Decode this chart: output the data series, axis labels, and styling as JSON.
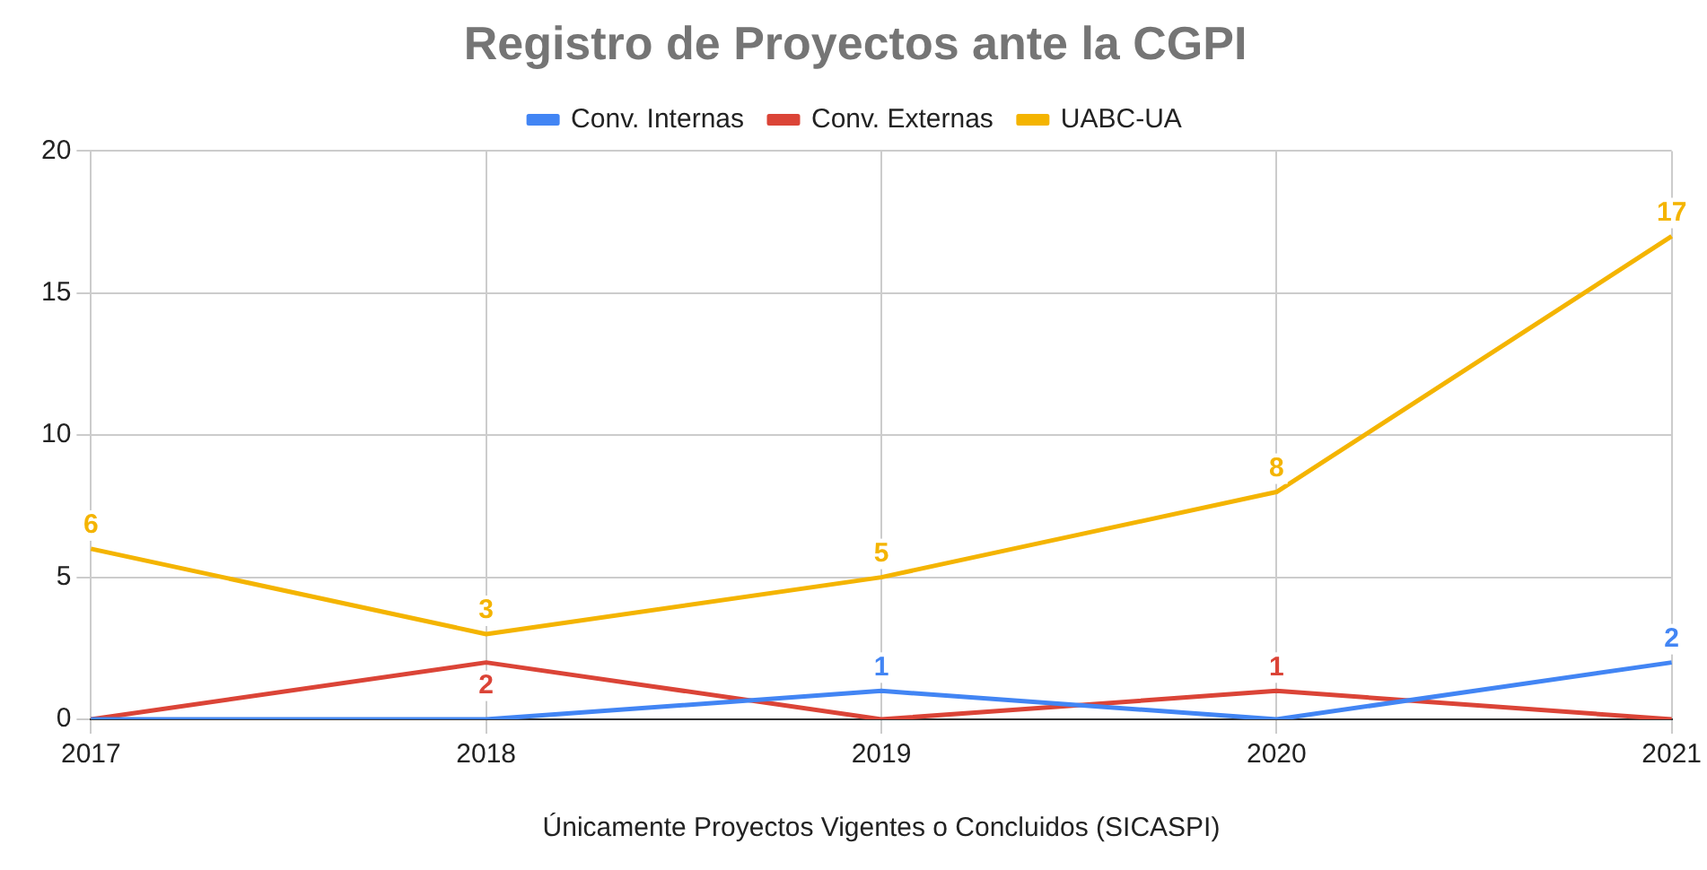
{
  "chart_data": {
    "type": "line",
    "title": "Registro de Proyectos ante la CGPI",
    "xlabel": "Únicamente Proyectos Vigentes o Concluidos (SICASPI)",
    "categories": [
      "2017",
      "2018",
      "2019",
      "2020",
      "2021"
    ],
    "series": [
      {
        "name": "Conv. Internas",
        "color": "#4285f4",
        "values": [
          0,
          0,
          1,
          0,
          2
        ],
        "value_labels": [
          null,
          null,
          "1",
          null,
          "2"
        ]
      },
      {
        "name": "Conv. Externas",
        "color": "#db4437",
        "values": [
          0,
          2,
          0,
          1,
          0
        ],
        "value_labels": [
          null,
          "2",
          null,
          "1",
          null
        ]
      },
      {
        "name": "UABC-UA",
        "color": "#f4b400",
        "values": [
          6,
          3,
          5,
          8,
          17
        ],
        "value_labels": [
          "6",
          "3",
          "5",
          "8",
          "17"
        ]
      }
    ],
    "ylim": [
      0,
      20
    ],
    "yticks": [
      0,
      5,
      10,
      15,
      20
    ],
    "grid": true,
    "legend": "top",
    "marker": "none",
    "line_style": "solid"
  }
}
